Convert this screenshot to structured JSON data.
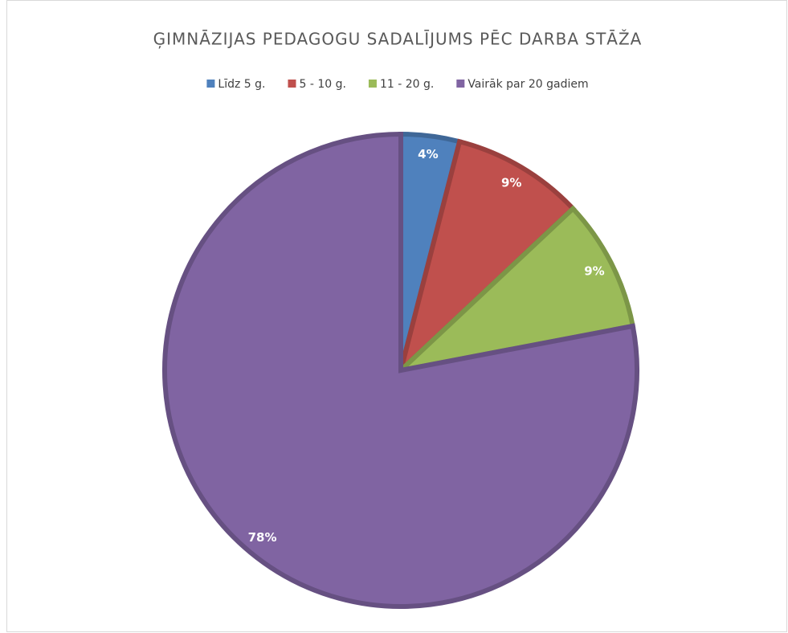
{
  "chart_data": {
    "type": "pie",
    "title": "ĢIMNĀZIJAS PEDAGOGU SADALĪJUMS PĒC DARBA STĀŽA",
    "categories": [
      "Līdz 5 g.",
      "5 - 10 g.",
      "11 - 20 g.",
      "Vairāk par 20 gadiem"
    ],
    "values": [
      4,
      9,
      9,
      78
    ],
    "value_labels": [
      "4%",
      "9%",
      "9%",
      "78%"
    ],
    "colors": [
      "#4f81bd",
      "#c0504d",
      "#9bbb59",
      "#8064a2"
    ],
    "legend": "top"
  }
}
